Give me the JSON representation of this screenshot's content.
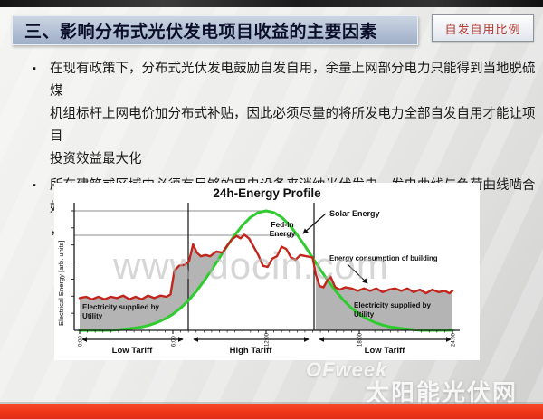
{
  "slide": {
    "title": "三、影响分布式光伏发电项目收益的主要因素",
    "corner_tag": "自发自用比例",
    "bullet_marker": "▪",
    "bullets": [
      "在现有政策下，分布式光伏发电鼓励自发自用，余量上网部分电力只能得到当地脱硫煤\n机组标杆上网电价加分布式补贴，因此必须尽量的将所发电力全部自发自用才能让项目\n投资效益最大化",
      "所在建筑或区域内必须有足够的用电设备来消纳光伏发电，发电曲线与负荷曲线啮合好\n，有效缓解波峰用电压力，节约波峰电费"
    ],
    "watermark_center": "www.docin.com",
    "watermark_brand": "OFweek",
    "watermark_brand_cn": "太阳能光伏网"
  },
  "chart_data": {
    "type": "line",
    "title": "24h-Energy Profile",
    "ylabel": "Electrical Energy [arb. units]",
    "xlabel": "",
    "x_ticks": [
      "0:00",
      "6:00",
      "12:00",
      "18:00",
      "24:00"
    ],
    "x_tick_hours": [
      0,
      6,
      12,
      18,
      24
    ],
    "x_range_hours": [
      0,
      24
    ],
    "ylim": [
      0,
      1
    ],
    "grid": false,
    "fill_color": "#b4b4b4",
    "reference_lines": [
      "solar peak level",
      "consumption peak level"
    ],
    "series": [
      {
        "name": "Solar Energy",
        "color": "#2fcc2f",
        "points": [
          [
            0,
            0
          ],
          [
            2,
            0
          ],
          [
            3,
            0.011
          ],
          [
            3.5,
            0.018
          ],
          [
            4,
            0.028
          ],
          [
            4.5,
            0.044
          ],
          [
            5,
            0.066
          ],
          [
            5.5,
            0.096
          ],
          [
            6,
            0.135
          ],
          [
            6.5,
            0.186
          ],
          [
            7,
            0.249
          ],
          [
            7.5,
            0.325
          ],
          [
            8,
            0.411
          ],
          [
            8.5,
            0.506
          ],
          [
            9,
            0.607
          ],
          [
            9.5,
            0.707
          ],
          [
            10,
            0.8
          ],
          [
            10.5,
            0.882
          ],
          [
            11,
            0.946
          ],
          [
            11.5,
            0.986
          ],
          [
            12,
            1
          ],
          [
            12.5,
            0.986
          ],
          [
            13,
            0.946
          ],
          [
            13.5,
            0.882
          ],
          [
            14,
            0.8
          ],
          [
            14.5,
            0.707
          ],
          [
            15,
            0.607
          ],
          [
            15.5,
            0.506
          ],
          [
            16,
            0.411
          ],
          [
            16.5,
            0.325
          ],
          [
            17,
            0.249
          ],
          [
            17.5,
            0.186
          ],
          [
            18,
            0.135
          ],
          [
            18.5,
            0.096
          ],
          [
            19,
            0.066
          ],
          [
            19.5,
            0.044
          ],
          [
            20,
            0.028
          ],
          [
            21,
            0.011
          ],
          [
            22,
            0
          ],
          [
            24,
            0
          ]
        ]
      },
      {
        "name": "Energy consumption of building",
        "color": "#c1251b",
        "points": [
          [
            0,
            0.27
          ],
          [
            0.4,
            0.28
          ],
          [
            0.8,
            0.26
          ],
          [
            1.2,
            0.28
          ],
          [
            1.6,
            0.26
          ],
          [
            2,
            0.28
          ],
          [
            2.4,
            0.27
          ],
          [
            2.8,
            0.29
          ],
          [
            3.2,
            0.26
          ],
          [
            3.6,
            0.28
          ],
          [
            4,
            0.26
          ],
          [
            4.4,
            0.29
          ],
          [
            4.8,
            0.27
          ],
          [
            5.2,
            0.29
          ],
          [
            5.6,
            0.28
          ],
          [
            5.85,
            0.3
          ],
          [
            6.1,
            0.5
          ],
          [
            6.4,
            0.54
          ],
          [
            6.8,
            0.55
          ],
          [
            7.05,
            0.58
          ],
          [
            7.3,
            0.72
          ],
          [
            7.55,
            0.65
          ],
          [
            7.8,
            0.62
          ],
          [
            8.1,
            0.63
          ],
          [
            8.4,
            0.62
          ],
          [
            8.8,
            0.66
          ],
          [
            9.2,
            0.65
          ],
          [
            9.5,
            0.71
          ],
          [
            9.8,
            0.76
          ],
          [
            10.1,
            0.79
          ],
          [
            10.35,
            0.77
          ],
          [
            10.6,
            0.8
          ],
          [
            10.9,
            0.77
          ],
          [
            11.2,
            0.7
          ],
          [
            11.5,
            0.63
          ],
          [
            11.8,
            0.54
          ],
          [
            12.1,
            0.53
          ],
          [
            12.4,
            0.6
          ],
          [
            12.7,
            0.62
          ],
          [
            13,
            0.7
          ],
          [
            13.3,
            0.68
          ],
          [
            13.6,
            0.61
          ],
          [
            13.9,
            0.59
          ],
          [
            14.2,
            0.63
          ],
          [
            14.6,
            0.62
          ],
          [
            15,
            0.61
          ],
          [
            15.2,
            0.47
          ],
          [
            15.45,
            0.37
          ],
          [
            15.7,
            0.36
          ],
          [
            15.95,
            0.42
          ],
          [
            16.15,
            0.45
          ],
          [
            16.45,
            0.36
          ],
          [
            16.75,
            0.34
          ],
          [
            17.1,
            0.36
          ],
          [
            17.5,
            0.35
          ],
          [
            17.9,
            0.33
          ],
          [
            18.3,
            0.35
          ],
          [
            18.7,
            0.33
          ],
          [
            19.1,
            0.35
          ],
          [
            19.5,
            0.32
          ],
          [
            19.9,
            0.34
          ],
          [
            20.3,
            0.35
          ],
          [
            20.7,
            0.33
          ],
          [
            21.1,
            0.35
          ],
          [
            21.5,
            0.32
          ],
          [
            21.9,
            0.34
          ],
          [
            22.3,
            0.31
          ],
          [
            22.7,
            0.34
          ],
          [
            23.1,
            0.32
          ],
          [
            23.5,
            0.33
          ],
          [
            23.8,
            0.31
          ],
          [
            24,
            0.33
          ]
        ]
      }
    ],
    "shaded_regions": [
      {
        "name": "utility-left",
        "description": "consumption supplied by utility before solar window",
        "until_hour": 9.2
      },
      {
        "name": "utility-right",
        "description": "consumption supplied by utility after solar window",
        "from_hour": 15.2
      }
    ],
    "area_labels": {
      "fed_in": [
        "Fed-In",
        "Energy"
      ],
      "utility_left": [
        "Electricity supplied by",
        "Utility"
      ],
      "utility_right": [
        "Electricity supplied by",
        "Utility"
      ]
    },
    "callouts": {
      "solar": "Solar Energy",
      "consumption": "Energy consumption of building"
    },
    "tariff_bands": [
      {
        "label": "Low Tariff",
        "from_hour": 0,
        "to_hour": 7
      },
      {
        "label": "High Tariff",
        "from_hour": 7,
        "to_hour": 15
      },
      {
        "label": "Low Tariff",
        "from_hour": 15,
        "to_hour": 24
      }
    ]
  }
}
